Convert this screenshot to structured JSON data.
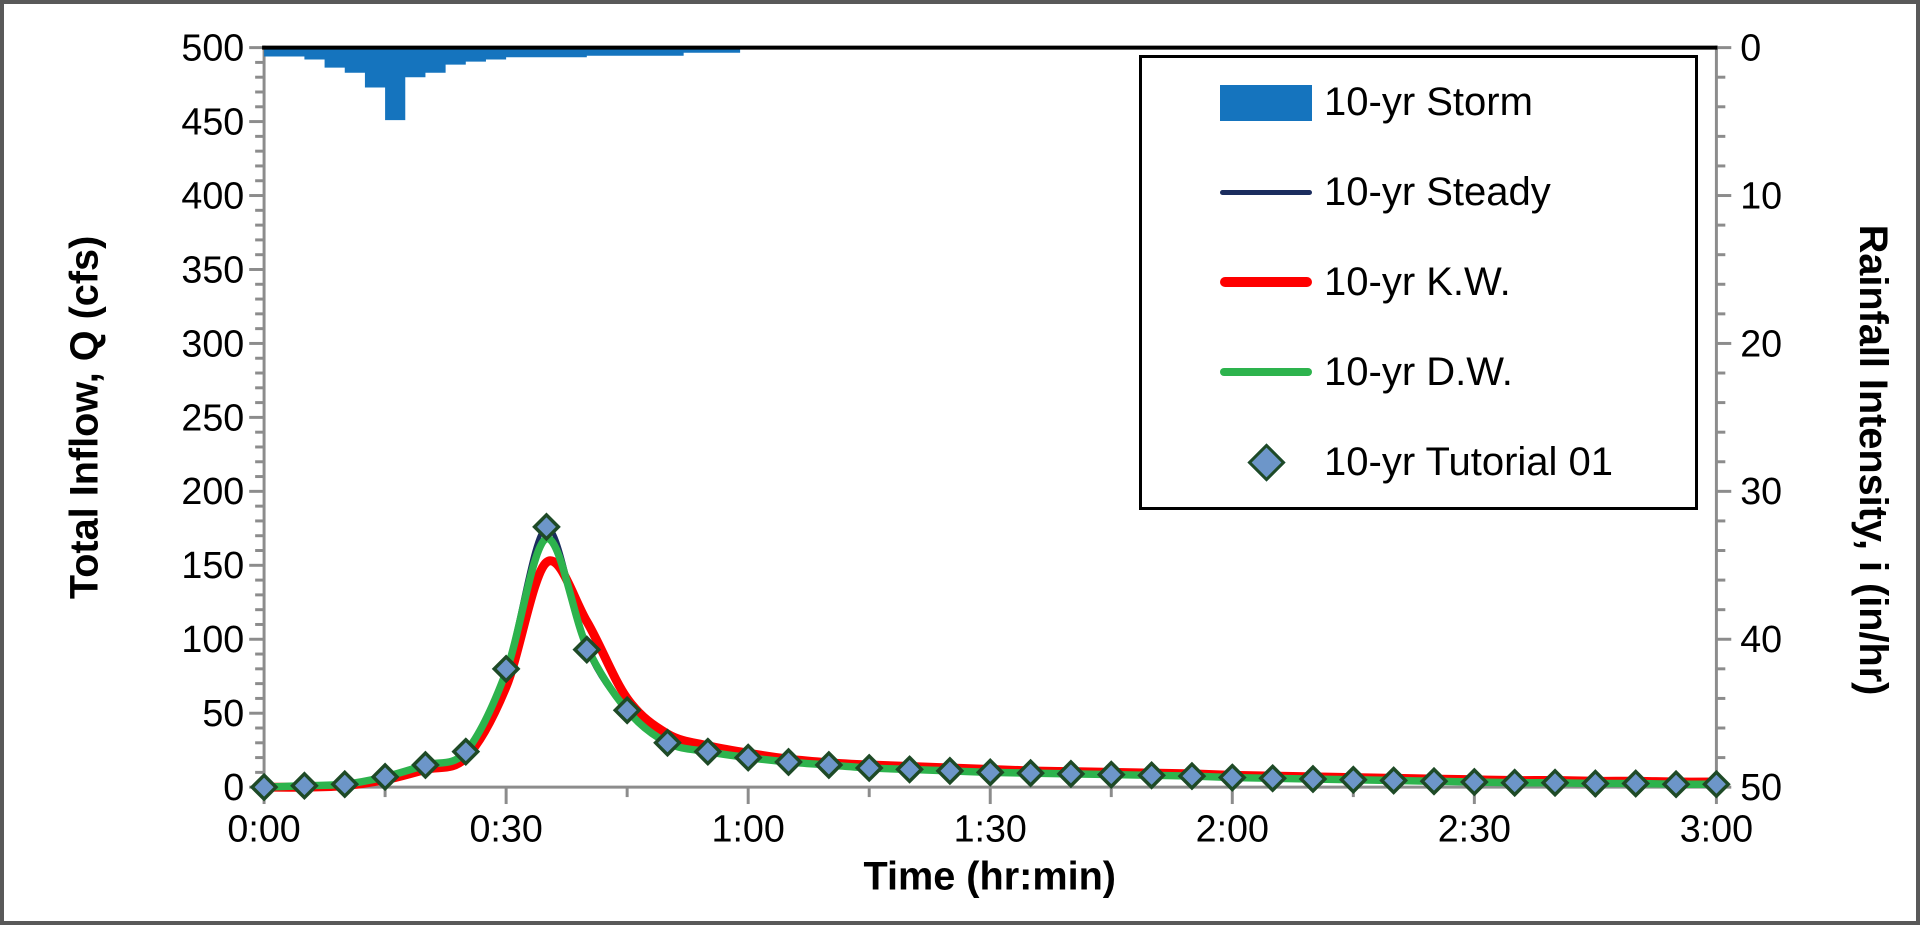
{
  "frame": {
    "background": "#FFFFFF",
    "border_color": "#595959"
  },
  "chart_data": {
    "type": "line",
    "title": "",
    "x_axis": {
      "label": "Time (hr:min)",
      "tick_labels": [
        "0:00",
        "0:30",
        "1:00",
        "1:30",
        "2:00",
        "2:30",
        "3:00"
      ],
      "major_minutes": [
        0,
        30,
        60,
        90,
        120,
        150,
        180
      ],
      "minor_minutes": [
        15,
        45,
        75,
        105,
        135,
        165
      ],
      "range_minutes": [
        0,
        180
      ]
    },
    "y_left": {
      "label": "Total Inflow, Q (cfs)",
      "tick_values": [
        500,
        450,
        400,
        350,
        300,
        250,
        200,
        150,
        100,
        50,
        0
      ],
      "range": [
        0,
        500
      ],
      "minor_step": 10
    },
    "y_right": {
      "label": "Rainfall Intensity, i (in/hr)",
      "tick_values": [
        0,
        10,
        20,
        30,
        40,
        50
      ],
      "range": [
        0,
        50
      ],
      "minor_step": 2,
      "direction": "inverted (0 at top)"
    },
    "axis_color": "#8C8C8C",
    "plot_top_border_color": "#000000",
    "series": {
      "storm": {
        "name": "10-yr Storm",
        "type": "bar",
        "axis": "right",
        "color": "#1574BE",
        "duration_min": 59,
        "steps_min_inhr": [
          [
            0,
            5,
            0.6
          ],
          [
            5,
            7.5,
            0.8
          ],
          [
            7.5,
            10,
            1.35
          ],
          [
            10,
            12.5,
            1.7
          ],
          [
            12.5,
            15,
            2.7
          ],
          [
            15,
            17.5,
            4.9
          ],
          [
            17.5,
            20,
            2.0
          ],
          [
            20,
            22.5,
            1.7
          ],
          [
            22.5,
            25,
            1.15
          ],
          [
            25,
            27.5,
            0.95
          ],
          [
            27.5,
            30,
            0.8
          ],
          [
            30,
            40,
            0.65
          ],
          [
            40,
            52,
            0.55
          ],
          [
            52,
            59,
            0.35
          ]
        ]
      },
      "steady": {
        "name": "10-yr Steady",
        "type": "line",
        "axis": "left",
        "color": "#1B2D5E",
        "stroke_width": 4.5,
        "t_step_min": 5,
        "values_cfs": [
          0,
          1,
          2,
          7,
          15,
          24,
          80,
          176,
          93,
          52,
          30,
          24,
          20,
          17,
          15,
          13,
          12,
          11,
          10,
          9.5,
          9,
          8.5,
          8,
          7.5,
          6.5,
          6,
          5.5,
          5,
          4.5,
          4,
          3.5,
          3,
          3,
          2.5,
          2.5,
          2,
          2
        ]
      },
      "kw": {
        "name": "10-yr K.W.",
        "type": "line",
        "axis": "left",
        "color": "#FE0000",
        "stroke_width": 9,
        "t_step_min": 5,
        "values_cfs": [
          0,
          0,
          1,
          5,
          12,
          20,
          68,
          152,
          112,
          60,
          36,
          28,
          23,
          19,
          16.5,
          15,
          14,
          13,
          12,
          11,
          10.5,
          10,
          9.5,
          9,
          8,
          7.5,
          7,
          6.5,
          6,
          5.5,
          5,
          4.5,
          4.5,
          4,
          4,
          3.5,
          3.5
        ]
      },
      "dw": {
        "name": "10-yr D.W.",
        "type": "line",
        "axis": "left",
        "color": "#2DB34D",
        "stroke_width": 7.5,
        "t_step_min": 5,
        "values_cfs": [
          0,
          1,
          2,
          7,
          15,
          24,
          78,
          168,
          95,
          52,
          30,
          24,
          20,
          17,
          15,
          13,
          12,
          11,
          10,
          9.5,
          9,
          8.5,
          8,
          7.5,
          6.5,
          6,
          5.5,
          5,
          4.5,
          4,
          3.5,
          3,
          3,
          2.5,
          2.5,
          2,
          2
        ]
      },
      "tutorial": {
        "name": "10-yr Tutorial 01",
        "type": "scatter",
        "axis": "left",
        "marker": "diamond",
        "marker_fill": "#6D96C9",
        "marker_stroke": "#1E4A26",
        "t_step_min": 5,
        "values_cfs": [
          0,
          1,
          2,
          7,
          15,
          24,
          80,
          176,
          93,
          52,
          30,
          24,
          20,
          17,
          15,
          13,
          12,
          11,
          10,
          9.5,
          9,
          8.5,
          8,
          7.5,
          6.5,
          6,
          5.5,
          5,
          4.5,
          4,
          3.5,
          3,
          3,
          2.5,
          2.5,
          2,
          2
        ]
      }
    },
    "legend": {
      "position": "top-right",
      "border_color": "#000000",
      "entries": [
        {
          "label": "10-yr Storm",
          "swatch": "bar",
          "color": "#1574BE"
        },
        {
          "label": "10-yr Steady",
          "swatch": "line-thin",
          "color": "#1B2D5E"
        },
        {
          "label": "10-yr K.W.",
          "swatch": "line-thick",
          "color": "#FE0000"
        },
        {
          "label": "10-yr D.W.",
          "swatch": "line-mid",
          "color": "#2DB34D"
        },
        {
          "label": "10-yr Tutorial 01",
          "swatch": "diamond",
          "color": "#6D96C9",
          "stroke": "#1E4A26"
        }
      ]
    }
  }
}
